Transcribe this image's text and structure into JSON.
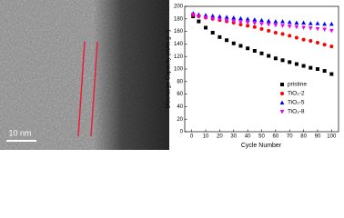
{
  "image": {
    "scale_bar_label": "10 nm"
  },
  "chart_data": {
    "type": "scatter",
    "xlabel": "Cycle Number",
    "ylabel": "Discharge Capacity (mAh g⁻¹)",
    "x": [
      1,
      5,
      10,
      15,
      20,
      25,
      30,
      35,
      40,
      45,
      50,
      55,
      60,
      65,
      70,
      75,
      80,
      85,
      90,
      95,
      100
    ],
    "series": [
      {
        "name": "pristine",
        "color": "#000000",
        "marker": "square",
        "values": [
          184,
          176,
          166,
          158,
          151,
          146,
          141,
          137,
          133,
          129,
          125,
          121,
          117,
          114,
          111,
          108,
          105,
          102,
          100,
          97,
          92
        ]
      },
      {
        "name": "TiO₂-2",
        "color": "#ff0000",
        "marker": "circle",
        "values": [
          186,
          184,
          182,
          180,
          178,
          176,
          174,
          171,
          169,
          167,
          164,
          161,
          158,
          156,
          153,
          150,
          147,
          145,
          142,
          139,
          136
        ]
      },
      {
        "name": "TiO₂-5",
        "color": "#0000ff",
        "marker": "triangle-up",
        "values": [
          189,
          187,
          186,
          185,
          184,
          183,
          182,
          181,
          180,
          179,
          178,
          177,
          176,
          176,
          175,
          174,
          174,
          173,
          173,
          172,
          172
        ]
      },
      {
        "name": "TiO₂-8",
        "color": "#ee00ee",
        "marker": "triangle-down",
        "values": [
          187,
          184,
          182,
          180,
          179,
          177,
          176,
          175,
          174,
          173,
          172,
          171,
          170,
          169,
          168,
          167,
          166,
          165,
          164,
          163,
          161
        ]
      }
    ],
    "xlim": [
      -5,
      105
    ],
    "xticks": [
      0,
      10,
      20,
      30,
      40,
      50,
      60,
      70,
      80,
      90,
      100
    ],
    "ylim": [
      0,
      200
    ],
    "yticks": [
      0,
      20,
      40,
      60,
      80,
      100,
      120,
      140,
      160,
      180,
      200
    ],
    "legend_loc": "lower right"
  }
}
